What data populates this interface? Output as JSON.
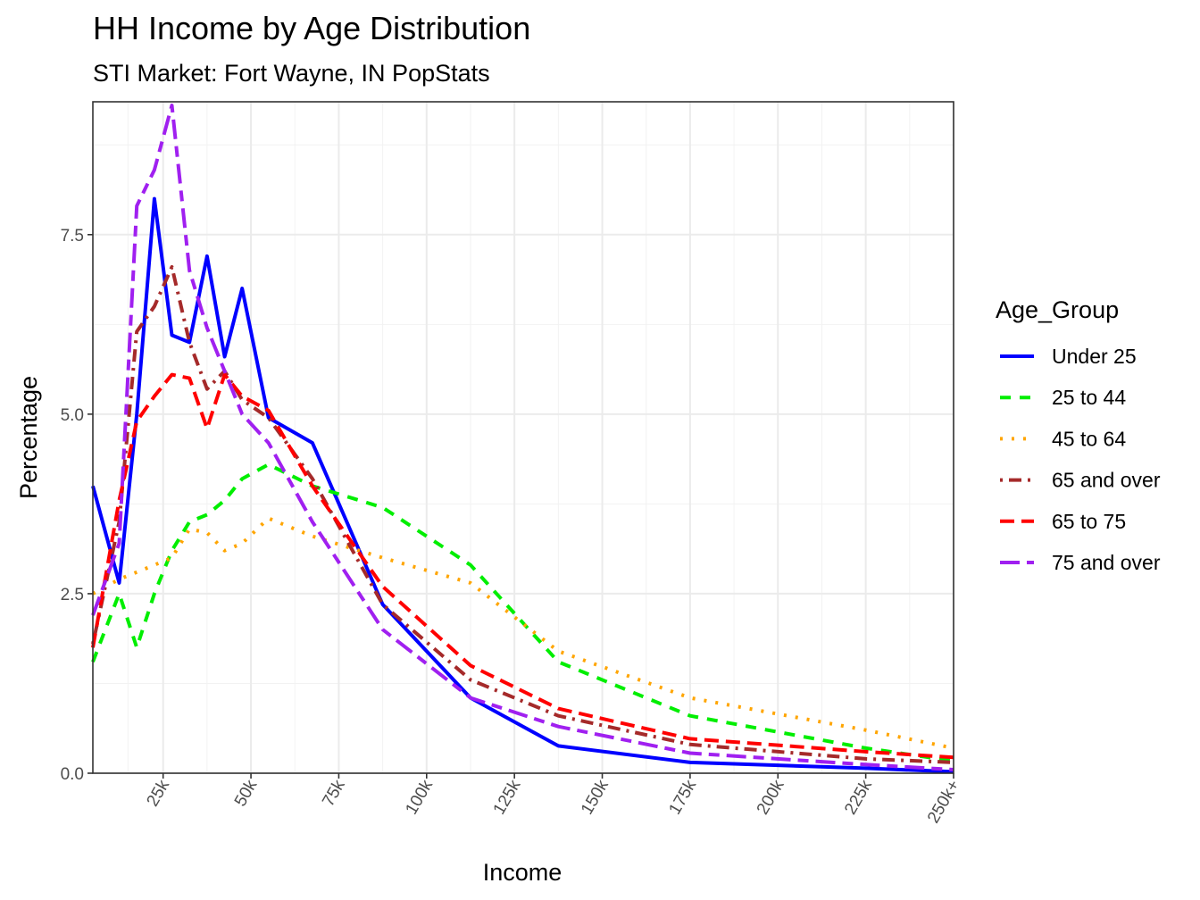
{
  "chart_data": {
    "type": "line",
    "title": "HH Income by Age Distribution",
    "subtitle": "STI Market: Fort Wayne, IN PopStats",
    "xlabel": "Income",
    "ylabel": "Percentage",
    "xlim": [
      5000,
      250000
    ],
    "ylim": [
      0,
      9.35
    ],
    "grid": true,
    "legend_title": "Age_Group",
    "legend_position": "right",
    "x_ticks": [
      {
        "value": 25000,
        "label": "25k"
      },
      {
        "value": 50000,
        "label": "50k"
      },
      {
        "value": 75000,
        "label": "75k"
      },
      {
        "value": 100000,
        "label": "100k"
      },
      {
        "value": 125000,
        "label": "125k"
      },
      {
        "value": 150000,
        "label": "150k"
      },
      {
        "value": 175000,
        "label": "175k"
      },
      {
        "value": 200000,
        "label": "200k"
      },
      {
        "value": 225000,
        "label": "225k"
      },
      {
        "value": 250000,
        "label": "250k+"
      }
    ],
    "y_ticks": [
      {
        "value": 0,
        "label": "0.0"
      },
      {
        "value": 2.5,
        "label": "2.5"
      },
      {
        "value": 5.0,
        "label": "5.0"
      },
      {
        "value": 7.5,
        "label": "7.5"
      }
    ],
    "x": [
      5000,
      12500,
      17500,
      22500,
      27500,
      32500,
      37500,
      42500,
      47500,
      55000,
      67500,
      87500,
      112500,
      137500,
      175000,
      225000,
      250000
    ],
    "series": [
      {
        "name": "Under 25",
        "color": "#0000ff",
        "dash": "solid",
        "values": [
          4.0,
          2.65,
          5.0,
          8.0,
          6.1,
          6.0,
          7.2,
          5.8,
          6.75,
          4.95,
          4.6,
          2.35,
          1.05,
          0.38,
          0.15,
          0.07,
          0.02
        ]
      },
      {
        "name": "25 to 44",
        "color": "#00ee00",
        "dash": "dashed",
        "values": [
          1.55,
          2.5,
          1.75,
          2.5,
          3.1,
          3.5,
          3.6,
          3.8,
          4.1,
          4.3,
          4.0,
          3.7,
          2.9,
          1.55,
          0.8,
          0.35,
          0.17
        ]
      },
      {
        "name": "45 to 64",
        "color": "#ffa500",
        "dash": "dotted",
        "values": [
          2.5,
          2.7,
          2.8,
          2.9,
          3.0,
          3.4,
          3.35,
          3.1,
          3.2,
          3.55,
          3.3,
          3.0,
          2.65,
          1.7,
          1.05,
          0.6,
          0.35
        ]
      },
      {
        "name": "65 and over",
        "color": "#a52a2a",
        "dash": "dotdash",
        "values": [
          1.8,
          3.5,
          6.15,
          6.5,
          7.05,
          6.0,
          5.35,
          5.6,
          5.2,
          4.95,
          4.1,
          2.35,
          1.3,
          0.8,
          0.4,
          0.2,
          0.15
        ]
      },
      {
        "name": "65 to 75",
        "color": "#ff0000",
        "dash": "longdash",
        "values": [
          1.75,
          3.8,
          4.9,
          5.25,
          5.55,
          5.5,
          4.8,
          5.55,
          5.25,
          5.05,
          4.0,
          2.6,
          1.5,
          0.9,
          0.48,
          0.3,
          0.22
        ]
      },
      {
        "name": "75 and over",
        "color": "#a020f0",
        "dash": "twodash",
        "values": [
          2.2,
          3.2,
          7.9,
          8.4,
          9.3,
          7.0,
          6.2,
          5.6,
          5.0,
          4.6,
          3.5,
          2.0,
          1.05,
          0.65,
          0.28,
          0.12,
          0.05
        ]
      }
    ]
  }
}
